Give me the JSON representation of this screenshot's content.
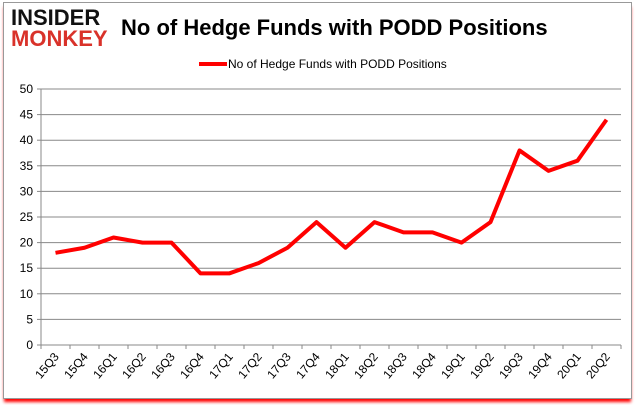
{
  "logo": {
    "line1": "INSIDER",
    "line2": "MONKEY"
  },
  "chart_data": {
    "type": "line",
    "title": "No of Hedge Funds with PODD Positions",
    "categories": [
      "15Q3",
      "15Q4",
      "16Q1",
      "16Q2",
      "16Q3",
      "16Q4",
      "17Q1",
      "17Q2",
      "17Q3",
      "17Q4",
      "18Q1",
      "18Q2",
      "18Q3",
      "18Q4",
      "19Q1",
      "19Q2",
      "19Q3",
      "19Q4",
      "20Q1",
      "20Q2"
    ],
    "series": [
      {
        "name": "No of Hedge Funds with PODD Positions",
        "color": "#ff0000",
        "values": [
          18,
          19,
          21,
          20,
          20,
          14,
          14,
          16,
          19,
          24,
          19,
          24,
          22,
          22,
          20,
          24,
          38,
          34,
          36,
          44
        ]
      }
    ],
    "ylim": [
      0,
      50
    ],
    "yticks": [
      0,
      5,
      10,
      15,
      20,
      25,
      30,
      35,
      40,
      45,
      50
    ],
    "grid": true,
    "legend": "top-center"
  }
}
